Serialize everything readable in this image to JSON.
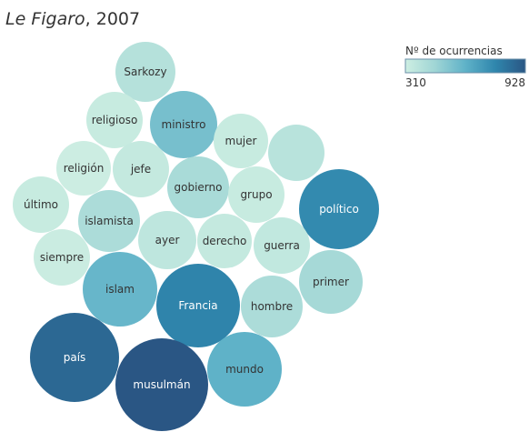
{
  "chart_data": {
    "type": "packed-bubble",
    "title_italic": "Le Figaro",
    "title_rest": ", 2007",
    "legend": {
      "title": "Nº de ocurrencias",
      "min_label": "310",
      "max_label": "928",
      "min_value": 310,
      "max_value": 928,
      "colors": [
        "#cdeee2",
        "#9fd5d5",
        "#5fb2c8",
        "#2f86ad",
        "#2a5684"
      ]
    },
    "bubbles": [
      {
        "label": "Sarkozy",
        "value": 390
      },
      {
        "label": "religioso",
        "value": 330
      },
      {
        "label": "ministro",
        "value": 560
      },
      {
        "label": "mujer",
        "value": 330
      },
      {
        "label": "",
        "value": 380
      },
      {
        "label": "religión",
        "value": 315
      },
      {
        "label": "jefe",
        "value": 340
      },
      {
        "label": "gobierno",
        "value": 430
      },
      {
        "label": "grupo",
        "value": 330
      },
      {
        "label": "político",
        "value": 760
      },
      {
        "label": "último",
        "value": 330
      },
      {
        "label": "islamista",
        "value": 420
      },
      {
        "label": "ayer",
        "value": 360
      },
      {
        "label": "derecho",
        "value": 340
      },
      {
        "label": "guerra",
        "value": 350
      },
      {
        "label": "siempre",
        "value": 320
      },
      {
        "label": "islam",
        "value": 600
      },
      {
        "label": "Francia",
        "value": 780
      },
      {
        "label": "hombre",
        "value": 420
      },
      {
        "label": "primer",
        "value": 440
      },
      {
        "label": "país",
        "value": 870
      },
      {
        "label": "mundo",
        "value": 620
      },
      {
        "label": "musulmán",
        "value": 928
      }
    ]
  }
}
